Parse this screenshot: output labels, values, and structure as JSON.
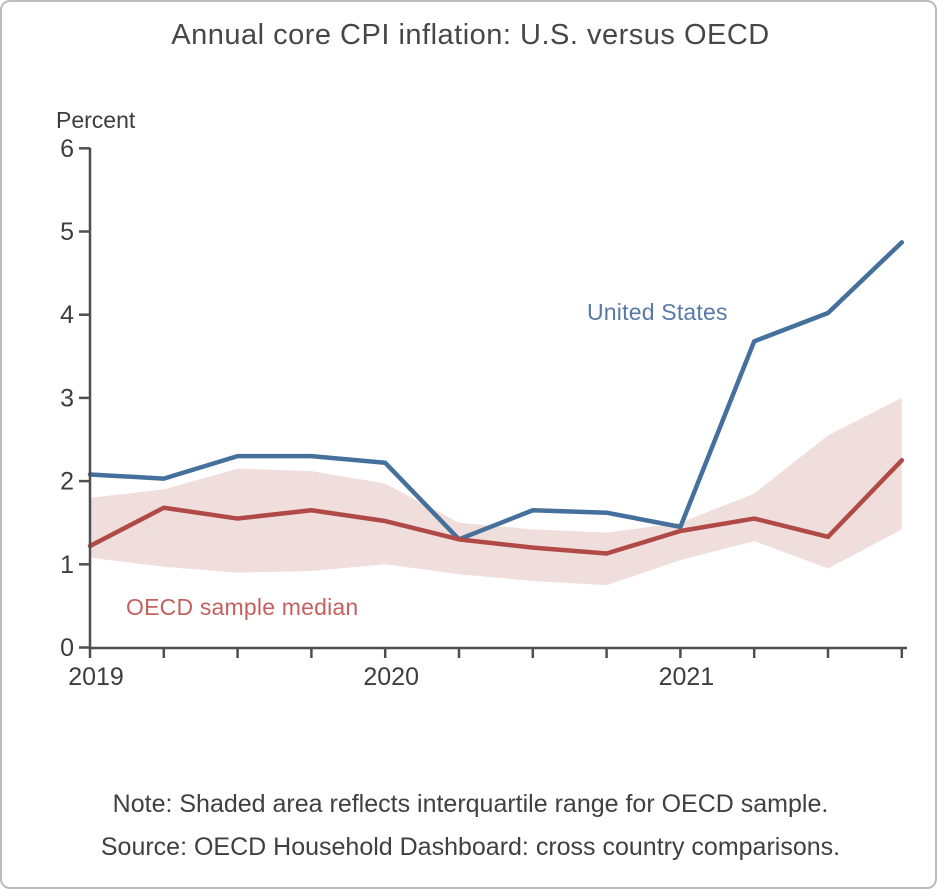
{
  "figure": {
    "title": "Annual core CPI inflation: U.S. versus OECD",
    "note": "Note: Shaded area reflects interquartile range for OECD sample.",
    "source": "Source: OECD Household Dashboard: cross country comparisons."
  },
  "chart_data": {
    "type": "line",
    "title": "Annual core CPI inflation: U.S. versus OECD",
    "xlabel": "",
    "ylabel": "Percent",
    "ylim": [
      0,
      6
    ],
    "yticks": [
      0,
      1,
      2,
      3,
      4,
      5,
      6
    ],
    "grid": false,
    "legend_position": "inline-annotations",
    "categories": [
      "2019Q1",
      "2019Q2",
      "2019Q3",
      "2019Q4",
      "2020Q1",
      "2020Q2",
      "2020Q3",
      "2020Q4",
      "2021Q1",
      "2021Q2",
      "2021Q3",
      "2021Q4"
    ],
    "x_tick_labels": [
      {
        "index": 0,
        "label": "2019"
      },
      {
        "index": 4,
        "label": "2020"
      },
      {
        "index": 8,
        "label": "2021"
      }
    ],
    "series": [
      {
        "name": "United States",
        "role": "line",
        "color": "#46709c",
        "values": [
          2.08,
          2.03,
          2.3,
          2.3,
          2.22,
          1.3,
          1.65,
          1.62,
          1.45,
          3.68,
          4.02,
          4.87
        ]
      },
      {
        "name": "OECD sample median",
        "role": "line",
        "color": "#b04a46",
        "values": [
          1.22,
          1.68,
          1.55,
          1.65,
          1.52,
          1.3,
          1.2,
          1.13,
          1.4,
          1.55,
          1.33,
          2.25
        ]
      },
      {
        "name": "OECD interquartile range",
        "role": "band",
        "color": "#f0dedc",
        "upper": [
          1.8,
          1.9,
          2.15,
          2.12,
          1.97,
          1.5,
          1.42,
          1.38,
          1.5,
          1.85,
          2.55,
          3.0
        ],
        "lower": [
          1.08,
          0.97,
          0.9,
          0.92,
          1.0,
          0.88,
          0.8,
          0.75,
          1.05,
          1.28,
          0.95,
          1.42
        ]
      }
    ],
    "annotations": [
      {
        "text": "United States",
        "color": "#5878a8",
        "series": "United States"
      },
      {
        "text": "OECD sample median",
        "color": "#c4615f",
        "series": "OECD sample median"
      }
    ],
    "axis_color": "#4f4f4f",
    "tick_label_color": "#3d3d3d"
  }
}
